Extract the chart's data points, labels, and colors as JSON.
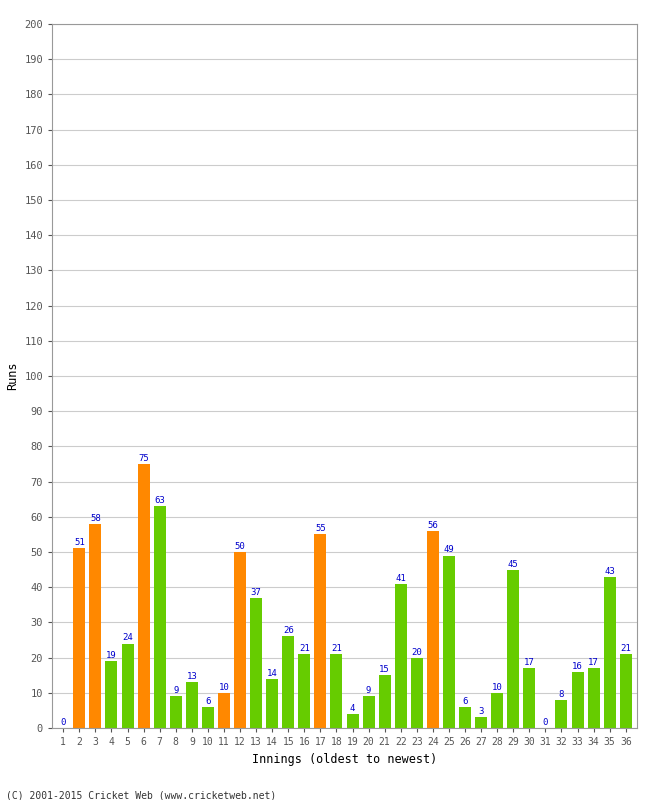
{
  "innings": [
    1,
    2,
    3,
    4,
    5,
    6,
    7,
    8,
    9,
    10,
    11,
    12,
    13,
    14,
    15,
    16,
    17,
    18,
    19,
    20,
    21,
    22,
    23,
    24,
    25,
    26,
    27,
    28,
    29,
    30,
    31,
    32,
    33,
    34,
    35,
    36
  ],
  "values": [
    0,
    51,
    58,
    19,
    24,
    75,
    63,
    9,
    13,
    6,
    10,
    50,
    37,
    14,
    26,
    21,
    55,
    21,
    4,
    9,
    15,
    41,
    20,
    56,
    49,
    6,
    3,
    10,
    45,
    17,
    0,
    8,
    16,
    17,
    43,
    21
  ],
  "colors": [
    "#ff8800",
    "#ff8800",
    "#ff8800",
    "#66cc00",
    "#66cc00",
    "#ff8800",
    "#66cc00",
    "#66cc00",
    "#66cc00",
    "#66cc00",
    "#ff8800",
    "#ff8800",
    "#66cc00",
    "#66cc00",
    "#66cc00",
    "#66cc00",
    "#ff8800",
    "#66cc00",
    "#66cc00",
    "#66cc00",
    "#66cc00",
    "#66cc00",
    "#66cc00",
    "#ff8800",
    "#66cc00",
    "#66cc00",
    "#66cc00",
    "#66cc00",
    "#66cc00",
    "#66cc00",
    "#66cc00",
    "#66cc00",
    "#66cc00",
    "#66cc00",
    "#66cc00",
    "#66cc00"
  ],
  "xlabel": "Innings (oldest to newest)",
  "ylabel": "Runs",
  "ylim": [
    0,
    200
  ],
  "yticks": [
    0,
    10,
    20,
    30,
    40,
    50,
    60,
    70,
    80,
    90,
    100,
    110,
    120,
    130,
    140,
    150,
    160,
    170,
    180,
    190,
    200
  ],
  "value_label_color": "#0000cc",
  "value_label_fontsize": 6.5,
  "bar_width": 0.75,
  "background_color": "#ffffff",
  "plot_bg_color": "#ffffff",
  "grid_color": "#cccccc",
  "footer": "(C) 2001-2015 Cricket Web (www.cricketweb.net)"
}
